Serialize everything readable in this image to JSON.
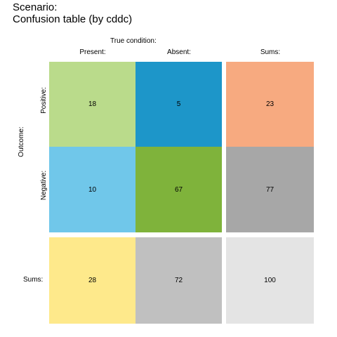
{
  "header": {
    "title_line1": "Scenario:",
    "title_line2": "Confusion table (by cddc)"
  },
  "chart_data": {
    "type": "table",
    "title": "Confusion table (by cddc)",
    "col_title": "True condition:",
    "row_title": "Outcome:",
    "columns": [
      "Present:",
      "Absent:",
      "Sums:"
    ],
    "rows": [
      "Positive:",
      "Negative:",
      "Sums:"
    ],
    "values": [
      [
        18,
        5,
        23
      ],
      [
        10,
        67,
        77
      ],
      [
        28,
        72,
        100
      ]
    ],
    "colors": [
      [
        "#BADB8B",
        "#1D96C9",
        "#F7AA80"
      ],
      [
        "#70C7EA",
        "#7FB33B",
        "#A7A7A7"
      ],
      [
        "#FEE98B",
        "#C0C0C0",
        "#E4E4E4"
      ]
    ]
  }
}
